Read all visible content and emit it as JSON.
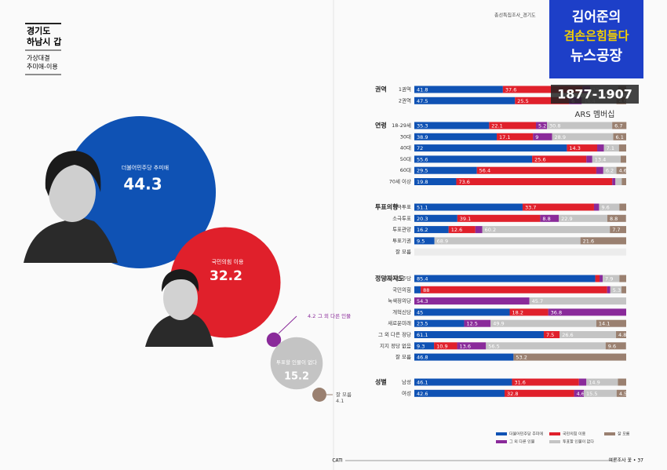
{
  "header": {
    "title": [
      "경기도",
      "하남시 갑"
    ],
    "subtitle": [
      "가상대결",
      "추미애-이용"
    ],
    "running_head": "총선특집조사_경기도"
  },
  "overlay": {
    "line1": "김어준의",
    "line2": "겸손은힘들다",
    "line3": "뉴스공장",
    "phone": "1877-1907",
    "note": "ARS 멤버십"
  },
  "footer": {
    "center": "CATI",
    "right": "여론조사 꽃 • 37"
  },
  "chart_data": [
    {
      "type": "bubble",
      "categories": [
        "더불어민주당 추미애",
        "국민의힘 이용",
        "그 외 다른 인물",
        "투표할 인물이 없다",
        "잘 모름"
      ],
      "values": [
        44.3,
        32.2,
        4.2,
        15.2,
        4.1
      ],
      "colors": [
        "#0f52b4",
        "#e0202b",
        "#8a2a9a",
        "#c4c4c4",
        "#9a8070"
      ]
    },
    {
      "type": "stacked-bar",
      "xlim": [
        0,
        100
      ],
      "series": [
        {
          "name": "더불어민주당 추미애",
          "color": "#0f52b4"
        },
        {
          "name": "국민의힘 이용",
          "color": "#e0202b"
        },
        {
          "name": "그 외 다른 인물",
          "color": "#8a2a9a"
        },
        {
          "name": "투표할 인물이 없다",
          "color": "#c4c4c4"
        },
        {
          "name": "잘 모름",
          "color": "#9a8070"
        }
      ],
      "groups": [
        {
          "name": "권역",
          "categories": [
            "1권역",
            "2권역"
          ],
          "values": [
            [
              41.8,
              37.6,
              3.6,
              13.2,
              3.8
            ],
            [
              47.5,
              25.5,
              6.0,
              16.4,
              4.6
            ]
          ]
        },
        {
          "name": "연령",
          "categories": [
            "18-29세",
            "30대",
            "40대",
            "50대",
            "60대",
            "70세 이상"
          ],
          "values": [
            [
              35.3,
              22.1,
              5.2,
              30.8,
              6.7
            ],
            [
              38.9,
              17.1,
              9.0,
              28.9,
              6.1
            ],
            [
              72.0,
              14.3,
              3.2,
              7.1,
              3.4
            ],
            [
              55.6,
              25.6,
              2.8,
              13.4,
              2.6
            ],
            [
              29.5,
              56.4,
              3.3,
              6.2,
              4.6
            ],
            [
              19.8,
              73.6,
              1.5,
              3.0,
              2.1
            ]
          ]
        },
        {
          "name": "투표의향",
          "categories": [
            "적극투표",
            "소극투표",
            "투표관망",
            "투표기권",
            "잘 모름"
          ],
          "values": [
            [
              51.1,
              33.7,
              2.4,
              9.6,
              3.2
            ],
            [
              20.3,
              39.1,
              8.8,
              22.9,
              8.8
            ],
            [
              16.2,
              12.6,
              3.3,
              60.2,
              7.7
            ],
            [
              9.5,
              0,
              0,
              68.9,
              21.6
            ],
            [
              null,
              null,
              null,
              null,
              null
            ]
          ]
        },
        {
          "name": "정당지지도",
          "categories": [
            "더불어민주당",
            "국민의힘",
            "녹색정의당",
            "개혁신당",
            "새로운미래",
            "그 외 다른 정당",
            "지지 정당 없음",
            "잘 모름"
          ],
          "values": [
            [
              85.4,
              2.0,
              1.5,
              7.9,
              3.2
            ],
            [
              3.0,
              88.0,
              1.5,
              5.3,
              2.2
            ],
            [
              0,
              0,
              54.3,
              45.7,
              0
            ],
            [
              45.0,
              18.2,
              36.8,
              0,
              0
            ],
            [
              23.5,
              0,
              12.5,
              49.9,
              14.1
            ],
            [
              61.1,
              7.5,
              0,
              26.6,
              4.8
            ],
            [
              9.3,
              10.9,
              13.6,
              56.5,
              9.6
            ],
            [
              46.8,
              0,
              0,
              0,
              53.2
            ]
          ]
        },
        {
          "name": "성별",
          "categories": [
            "남성",
            "여성"
          ],
          "values": [
            [
              46.1,
              31.6,
              3.5,
              14.9,
              3.9
            ],
            [
              42.6,
              32.8,
              4.6,
              15.5,
              4.5
            ]
          ]
        }
      ]
    }
  ]
}
